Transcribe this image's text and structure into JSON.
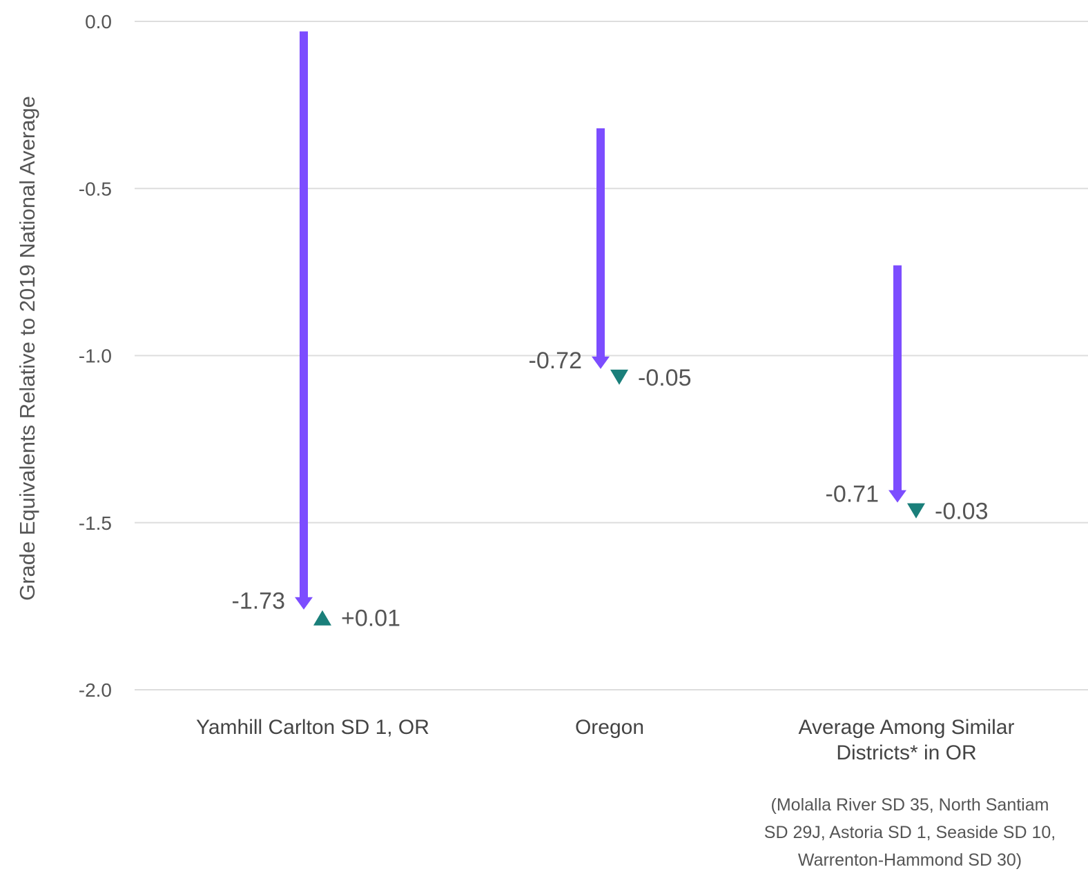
{
  "chart_data": {
    "type": "arrow",
    "ylabel": "Grade Equivalents Relative to 2019 National Average",
    "xlabel": "",
    "ylim": [
      -2.0,
      0.0
    ],
    "yticks": [
      {
        "value": 0.0,
        "label": "0.0"
      },
      {
        "value": -0.5,
        "label": "-0.5"
      },
      {
        "value": -1.0,
        "label": "-1.0"
      },
      {
        "value": -1.5,
        "label": "-1.5"
      },
      {
        "value": -2.0,
        "label": "-2.0"
      }
    ],
    "grid": true,
    "categories": [
      {
        "lines": [
          "Yamhill Carlton SD 1, OR"
        ],
        "start": -0.03,
        "end": -1.76,
        "change": -1.73,
        "change_label": "-1.73",
        "recent_change": 0.01,
        "recent_label": "+0.01",
        "recent_direction": "up"
      },
      {
        "lines": [
          "Oregon"
        ],
        "start": -0.32,
        "end": -1.04,
        "change": -0.72,
        "change_label": "-0.72",
        "recent_change": -0.05,
        "recent_label": "-0.05",
        "recent_direction": "down"
      },
      {
        "lines": [
          "Average Among Similar",
          "Districts* in OR"
        ],
        "start": -0.73,
        "end": -1.44,
        "change": -0.71,
        "change_label": "-0.71",
        "recent_change": -0.03,
        "recent_label": "-0.03",
        "recent_direction": "down"
      }
    ],
    "footnote": [
      "(Molalla River SD 35, North Santiam",
      "SD 29J, Astoria SD 1, Seaside SD 10,",
      "Warrenton-Hammond SD 30)"
    ],
    "colors": {
      "arrow": "#7c4dff",
      "marker": "#1a7f7a",
      "grid": "#dddddd"
    }
  }
}
